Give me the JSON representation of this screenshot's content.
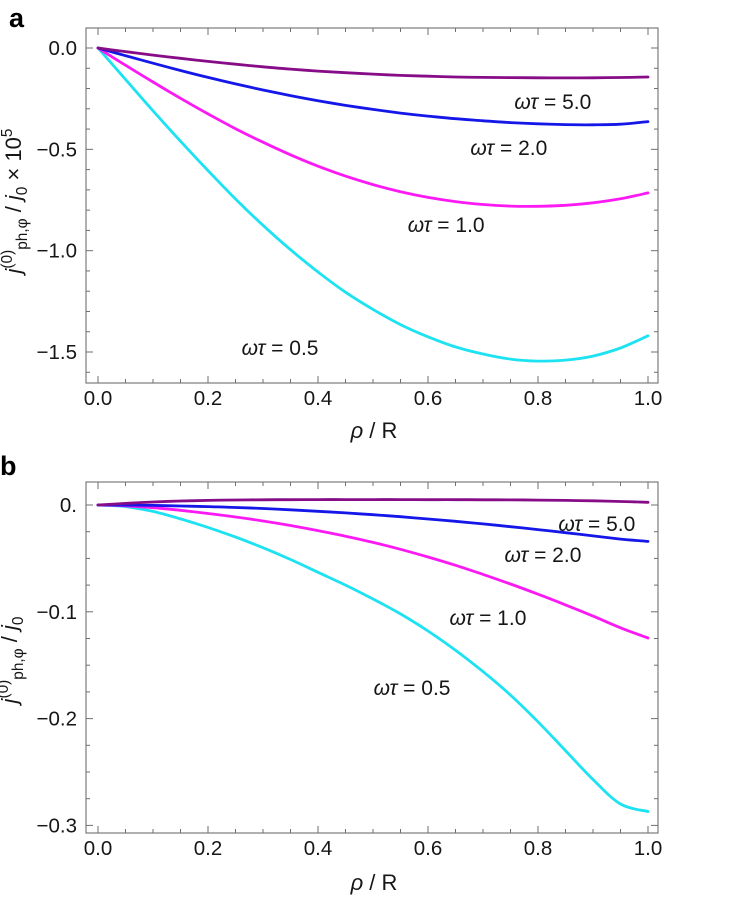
{
  "figure": {
    "background": "#ffffff",
    "frame_color": "#6f6f6f",
    "text_color": "#161616",
    "panels": [
      {
        "panel_label": "a"
      },
      {
        "panel_label": "b"
      }
    ]
  },
  "chart_data": [
    {
      "type": "line",
      "panel": "a",
      "title": "",
      "xlabel": "ρ / R",
      "ylabel": "j(0)ph,φ / j0 × 10^5",
      "xlabel_rich": [
        [
          "ρ",
          "i"
        ],
        [
          " / R",
          "n"
        ]
      ],
      "ylabel_rich": [
        [
          "j",
          "i"
        ],
        [
          "(0)",
          "sup"
        ],
        [
          "ph,φ",
          "sub"
        ],
        [
          " / ",
          "n"
        ],
        [
          "j",
          "i"
        ],
        [
          "0",
          "sub"
        ],
        [
          " × 10",
          "n"
        ],
        [
          "5",
          "sup"
        ]
      ],
      "xlim": [
        -0.022,
        1.018
      ],
      "ylim": [
        -1.648,
        0.098
      ],
      "grid": false,
      "legend": "inline-annotations",
      "x_ticks": [
        {
          "v": 0,
          "label": "0.0"
        },
        {
          "v": 0.2,
          "label": "0.2"
        },
        {
          "v": 0.4,
          "label": "0.4"
        },
        {
          "v": 0.6,
          "label": "0.6"
        },
        {
          "v": 0.8,
          "label": "0.8"
        },
        {
          "v": 1,
          "label": "1.0"
        }
      ],
      "y_ticks": [
        {
          "v": 0,
          "label": "0.0"
        },
        {
          "v": -0.5,
          "label": "−0.5"
        },
        {
          "v": -1,
          "label": "−1.0"
        },
        {
          "v": -1.5,
          "label": "−1.5"
        }
      ],
      "x_minor_step": 0.05,
      "y_minor_step": 0.1,
      "x": [
        0,
        0.05,
        0.1,
        0.15,
        0.2,
        0.25,
        0.3,
        0.35,
        0.4,
        0.45,
        0.5,
        0.55,
        0.6,
        0.65,
        0.7,
        0.75,
        0.8,
        0.85,
        0.9,
        0.95,
        1.0
      ],
      "series": [
        {
          "name": "ωτ = 0.5",
          "color": "#1de2f2",
          "values": [
            0,
            -0.155,
            -0.31,
            -0.46,
            -0.605,
            -0.745,
            -0.875,
            -0.995,
            -1.105,
            -1.205,
            -1.29,
            -1.365,
            -1.425,
            -1.475,
            -1.51,
            -1.535,
            -1.545,
            -1.54,
            -1.52,
            -1.48,
            -1.42
          ]
        },
        {
          "name": "ωτ = 1.0",
          "color": "#fb1af3",
          "values": [
            0,
            -0.085,
            -0.168,
            -0.248,
            -0.325,
            -0.398,
            -0.465,
            -0.527,
            -0.583,
            -0.632,
            -0.674,
            -0.709,
            -0.737,
            -0.758,
            -0.772,
            -0.78,
            -0.781,
            -0.776,
            -0.764,
            -0.744,
            -0.715
          ]
        },
        {
          "name": "ωτ = 2.0",
          "color": "#1417e8",
          "values": [
            0,
            -0.038,
            -0.075,
            -0.111,
            -0.145,
            -0.177,
            -0.207,
            -0.235,
            -0.26,
            -0.283,
            -0.303,
            -0.321,
            -0.336,
            -0.349,
            -0.359,
            -0.368,
            -0.374,
            -0.378,
            -0.379,
            -0.376,
            -0.363
          ]
        },
        {
          "name": "ωτ = 5.0",
          "color": "#870d88",
          "values": [
            0,
            -0.018,
            -0.035,
            -0.051,
            -0.066,
            -0.08,
            -0.093,
            -0.104,
            -0.114,
            -0.122,
            -0.129,
            -0.135,
            -0.139,
            -0.143,
            -0.145,
            -0.146,
            -0.147,
            -0.1475,
            -0.147,
            -0.1455,
            -0.143
          ]
        }
      ],
      "annotations": [
        {
          "italic": "ωτ",
          "rest": " = 5.0",
          "x": 0.827,
          "y": -0.266
        },
        {
          "italic": "ωτ",
          "rest": " = 2.0",
          "x": 0.747,
          "y": -0.493
        },
        {
          "italic": "ωτ",
          "rest": " = 1.0",
          "x": 0.633,
          "y": -0.873
        },
        {
          "italic": "ωτ",
          "rest": " = 0.5",
          "x": 0.331,
          "y": -1.48
        }
      ]
    },
    {
      "type": "line",
      "panel": "b",
      "title": "",
      "xlabel": "ρ / R",
      "ylabel": "j(0)ph,φ / j0",
      "xlabel_rich": [
        [
          "ρ",
          "i"
        ],
        [
          " / R",
          "n"
        ]
      ],
      "ylabel_rich": [
        [
          "j",
          "i"
        ],
        [
          "(0)",
          "sup"
        ],
        [
          "ph,φ",
          "sub"
        ],
        [
          " / ",
          "n"
        ],
        [
          "j",
          "i"
        ],
        [
          "0",
          "sub"
        ]
      ],
      "xlim": [
        -0.022,
        1.018
      ],
      "ylim": [
        -0.307,
        0.021
      ],
      "grid": false,
      "legend": "inline-annotations",
      "x_ticks": [
        {
          "v": 0,
          "label": "0.0"
        },
        {
          "v": 0.2,
          "label": "0.2"
        },
        {
          "v": 0.4,
          "label": "0.4"
        },
        {
          "v": 0.6,
          "label": "0.6"
        },
        {
          "v": 0.8,
          "label": "0.8"
        },
        {
          "v": 1,
          "label": "1.0"
        }
      ],
      "y_ticks": [
        {
          "v": 0,
          "label": "0."
        },
        {
          "v": -0.1,
          "label": "−0.1"
        },
        {
          "v": -0.2,
          "label": "−0.2"
        },
        {
          "v": -0.3,
          "label": "−0.3"
        }
      ],
      "x_minor_step": 0.05,
      "y_minor_step": 0.025,
      "x": [
        0,
        0.05,
        0.1,
        0.15,
        0.2,
        0.25,
        0.3,
        0.35,
        0.4,
        0.45,
        0.5,
        0.55,
        0.6,
        0.65,
        0.7,
        0.75,
        0.8,
        0.85,
        0.9,
        0.95,
        1.0
      ],
      "series": [
        {
          "name": "ωτ = 0.5",
          "color": "#1de2f2",
          "values": [
            0,
            -0.0015,
            -0.006,
            -0.013,
            -0.021,
            -0.03,
            -0.04,
            -0.051,
            -0.063,
            -0.075,
            -0.088,
            -0.102,
            -0.118,
            -0.136,
            -0.156,
            -0.178,
            -0.203,
            -0.23,
            -0.257,
            -0.28,
            -0.287
          ]
        },
        {
          "name": "ωτ = 1.0",
          "color": "#fb1af3",
          "values": [
            0,
            -0.0008,
            -0.0025,
            -0.005,
            -0.008,
            -0.0112,
            -0.015,
            -0.0192,
            -0.024,
            -0.0292,
            -0.035,
            -0.0415,
            -0.0487,
            -0.0565,
            -0.065,
            -0.074,
            -0.0835,
            -0.0935,
            -0.104,
            -0.115,
            -0.1245
          ]
        },
        {
          "name": "ωτ = 2.0",
          "color": "#1417e8",
          "values": [
            0,
            -0.0001,
            -0.0004,
            -0.0009,
            -0.0015,
            -0.0023,
            -0.0033,
            -0.0045,
            -0.0059,
            -0.0074,
            -0.0091,
            -0.011,
            -0.0131,
            -0.0153,
            -0.0177,
            -0.0203,
            -0.023,
            -0.0259,
            -0.0289,
            -0.0319,
            -0.0341
          ]
        },
        {
          "name": "ωτ = 5.0",
          "color": "#870d88",
          "values": [
            0,
            0.0015,
            0.0028,
            0.0037,
            0.0043,
            0.0047,
            0.0049,
            0.005,
            0.0051,
            0.0051,
            0.0051,
            0.0051,
            0.005,
            0.005,
            0.0049,
            0.0048,
            0.0046,
            0.0043,
            0.0039,
            0.0033,
            0.0025
          ]
        }
      ],
      "annotations": [
        {
          "italic": "ωτ",
          "rest": " = 5.0",
          "x": 0.907,
          "y": -0.0178
        },
        {
          "italic": "ωτ",
          "rest": " = 2.0",
          "x": 0.809,
          "y": -0.0468
        },
        {
          "italic": "ωτ",
          "rest": " = 1.0",
          "x": 0.709,
          "y": -0.1058
        },
        {
          "italic": "ωτ",
          "rest": " = 0.5",
          "x": 0.571,
          "y": -0.1713
        }
      ]
    }
  ]
}
